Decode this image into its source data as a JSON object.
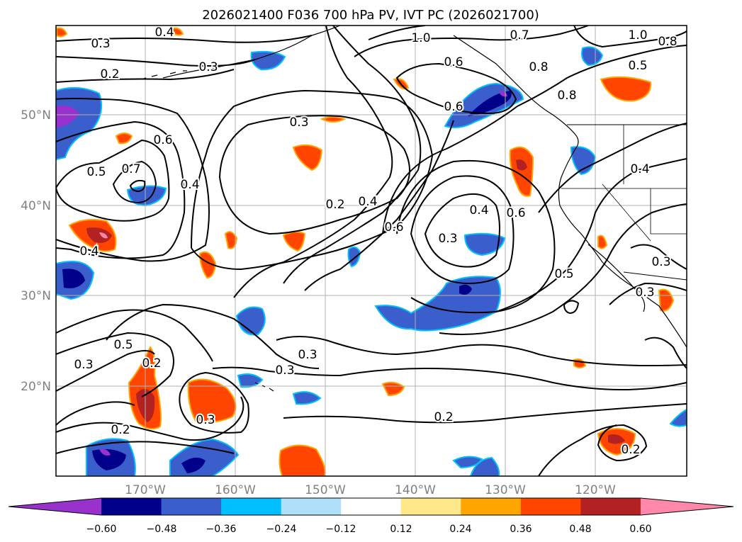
{
  "title": "2026021400 F036 700 hPa PV, IVT PC (2026021700)",
  "lat_labels": [
    "50°N",
    "40°N",
    "30°N",
    "20°N"
  ],
  "lon_labels": [
    "170°W",
    "160°W",
    "150°W",
    "140°W",
    "130°W",
    "120°W"
  ],
  "colorbar": {
    "ticks": [
      "−0.60",
      "−0.48",
      "−0.36",
      "−0.24",
      "−0.12",
      "0.12",
      "0.24",
      "0.36",
      "0.48",
      "0.60"
    ],
    "colors": [
      "#9932cc",
      "#00008b",
      "#3a5fcd",
      "#00bfff",
      "#b0e0f8",
      "#ffffff",
      "#ffe88a",
      "#ffa500",
      "#ff4500",
      "#b22222",
      "#ff88aa"
    ]
  },
  "contour_labels": [
    "0.4",
    "0.3",
    "0.2",
    "0.3",
    "1.0",
    "0.7",
    "1.0",
    "0.8",
    "0.5",
    "0.8",
    "0.6",
    "0.8",
    "0.6",
    "0.3",
    "0.6",
    "0.5",
    "0.7",
    "0.4",
    "0.2",
    "0.4",
    "0.6",
    "0.4",
    "0.3",
    "0.6",
    "0.4",
    "0.4",
    "0.5",
    "0.3",
    "0.5",
    "0.3",
    "0.3",
    "0.3",
    "0.2",
    "0.3",
    "0.2",
    "0.2",
    "0.2",
    "0.3"
  ]
}
